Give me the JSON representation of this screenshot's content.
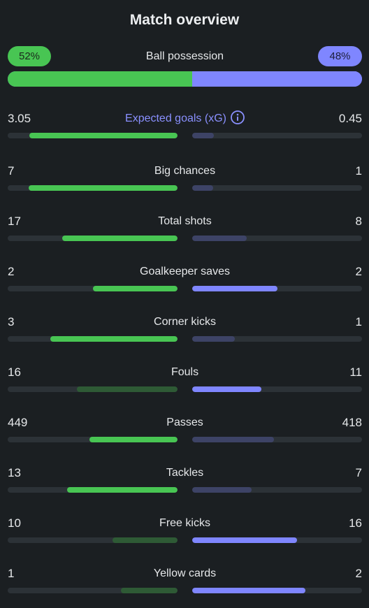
{
  "header": {
    "title": "Match overview"
  },
  "possession": {
    "label": "Ball possession",
    "home_text": "52%",
    "away_text": "48%",
    "home_value": 52,
    "away_value": 48
  },
  "colors": {
    "home_strong": "#48c553",
    "home_weak": "#2e5a35",
    "away_strong": "#7f86ff",
    "away_weak": "#3d4366",
    "track": "#2c3237",
    "background": "#1b1f22"
  },
  "stats": [
    {
      "label": "Expected goals (xG)",
      "home": "3.05",
      "away": "0.45",
      "home_value": 3.05,
      "away_value": 0.45,
      "icon": "info-icon",
      "highlight": true
    },
    {
      "label": "Big chances",
      "home": "7",
      "away": "1",
      "home_value": 7,
      "away_value": 1
    },
    {
      "label": "Total shots",
      "home": "17",
      "away": "8",
      "home_value": 17,
      "away_value": 8
    },
    {
      "label": "Goalkeeper saves",
      "home": "2",
      "away": "2",
      "home_value": 2,
      "away_value": 2
    },
    {
      "label": "Corner kicks",
      "home": "3",
      "away": "1",
      "home_value": 3,
      "away_value": 1
    },
    {
      "label": "Fouls",
      "home": "16",
      "away": "11",
      "home_value": 16,
      "away_value": 11
    },
    {
      "label": "Passes",
      "home": "449",
      "away": "418",
      "home_value": 449,
      "away_value": 418
    },
    {
      "label": "Tackles",
      "home": "13",
      "away": "7",
      "home_value": 13,
      "away_value": 7
    },
    {
      "label": "Free kicks",
      "home": "10",
      "away": "16",
      "home_value": 10,
      "away_value": 16
    },
    {
      "label": "Yellow cards",
      "home": "1",
      "away": "2",
      "home_value": 1,
      "away_value": 2
    }
  ]
}
